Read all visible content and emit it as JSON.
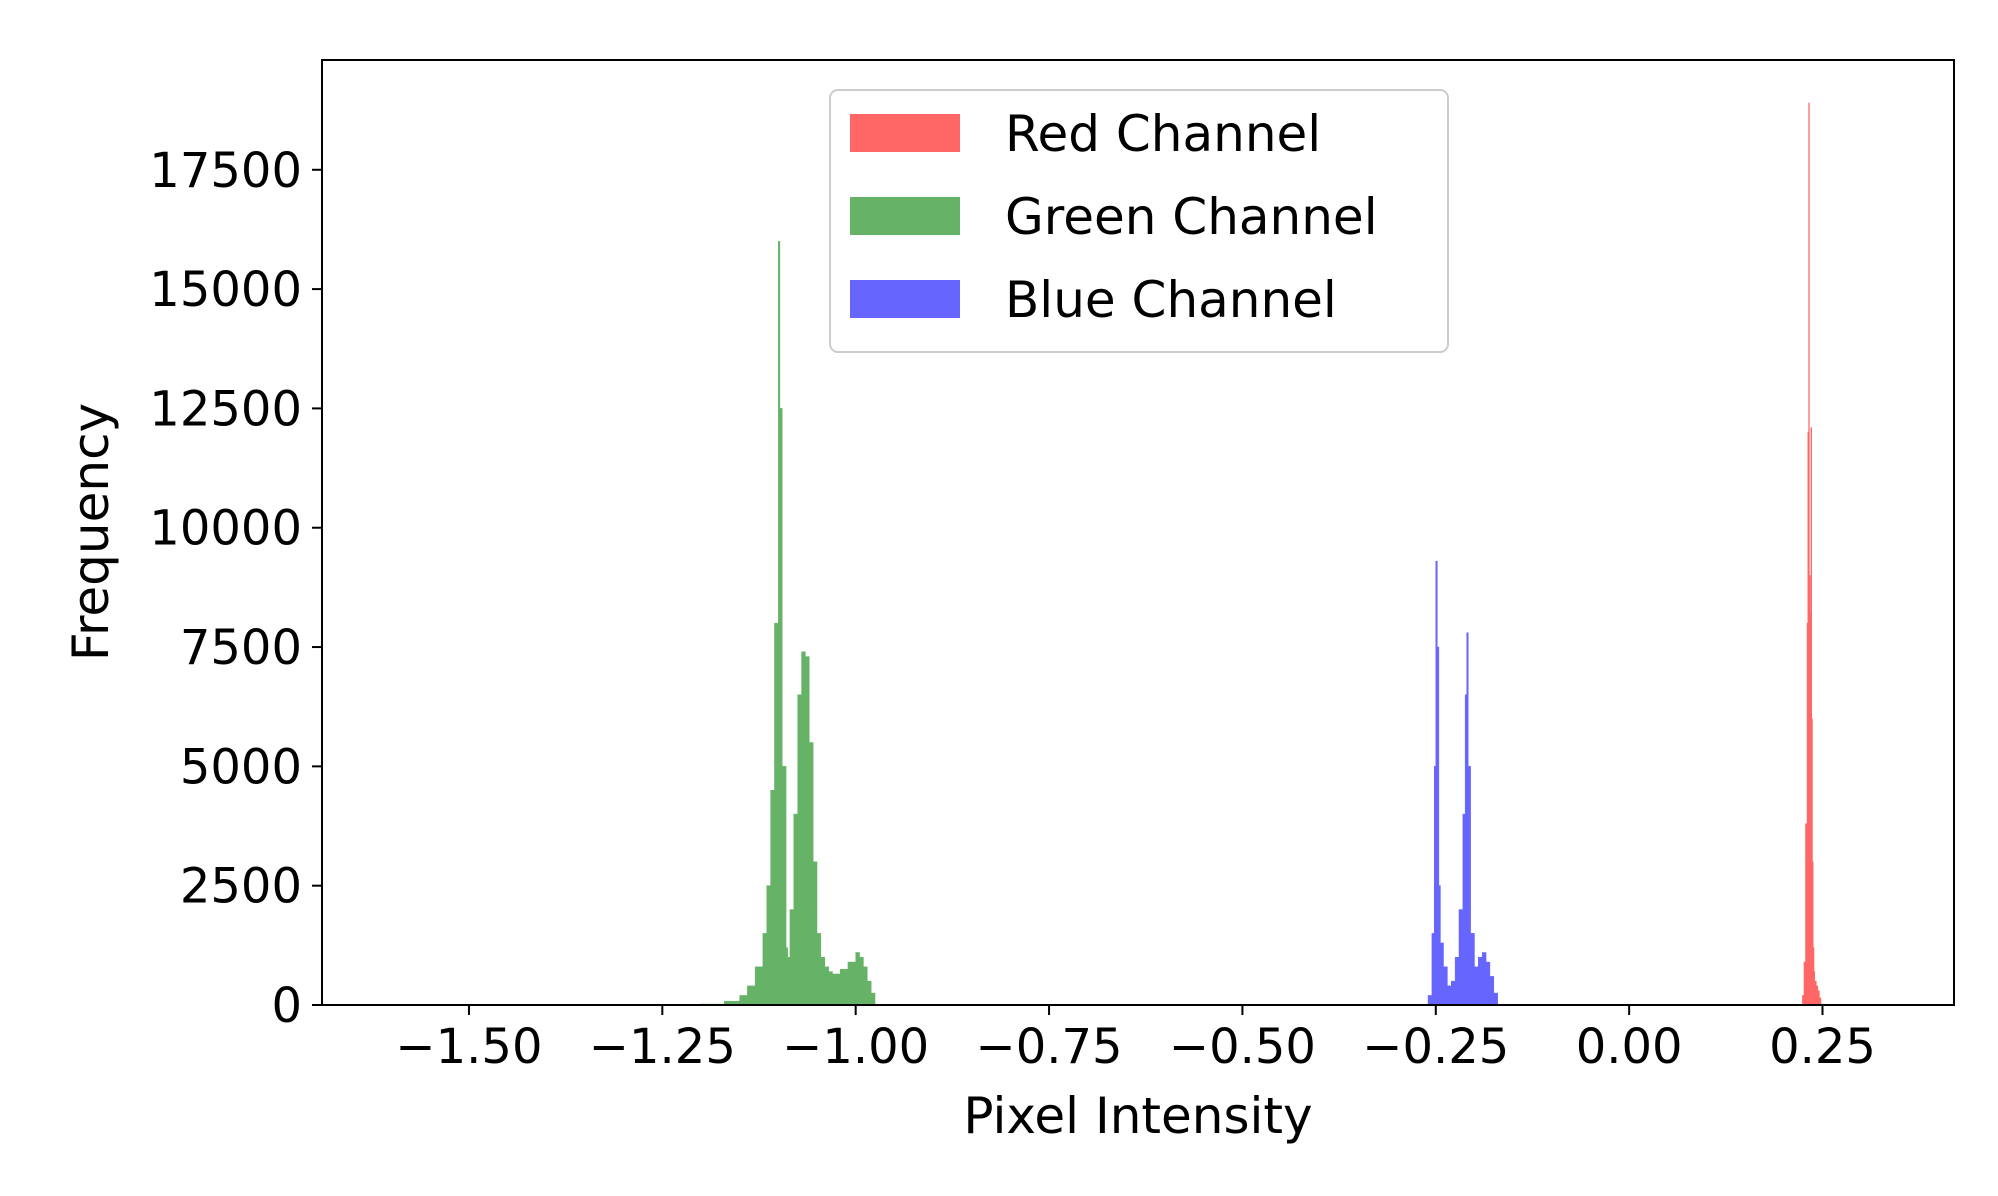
{
  "chart_data": {
    "type": "bar",
    "title": "",
    "xlabel": "Pixel Intensity",
    "ylabel": "Frequency",
    "xlim": [
      -1.69,
      0.42
    ],
    "ylim": [
      0,
      19800
    ],
    "x_ticks": [
      -1.5,
      -1.25,
      -1.0,
      -0.75,
      -0.5,
      -0.25,
      0.0,
      0.25
    ],
    "x_tick_labels": [
      "−1.50",
      "−1.25",
      "−1.00",
      "−0.75",
      "−0.50",
      "−0.25",
      "0.00",
      "0.25"
    ],
    "y_ticks": [
      0,
      2500,
      5000,
      7500,
      10000,
      12500,
      15000,
      17500
    ],
    "y_tick_labels": [
      "0",
      "2500",
      "5000",
      "7500",
      "10000",
      "12500",
      "15000",
      "17500"
    ],
    "grid": false,
    "legend_position": "top-center",
    "series": [
      {
        "name": "Red Channel",
        "color": "#ff6666",
        "x": [
          0.224,
          0.226,
          0.228,
          0.23,
          0.231,
          0.232,
          0.233,
          0.234,
          0.235,
          0.236,
          0.237,
          0.238,
          0.239,
          0.24,
          0.242,
          0.244,
          0.246,
          0.248
        ],
        "values": [
          200,
          900,
          3800,
          8000,
          12000,
          18900,
          9000,
          8200,
          12100,
          6000,
          3000,
          1200,
          700,
          500,
          400,
          300,
          150,
          0
        ]
      },
      {
        "name": "Green Channel",
        "color": "#66b266",
        "x": [
          -1.2,
          -1.17,
          -1.15,
          -1.14,
          -1.13,
          -1.12,
          -1.115,
          -1.11,
          -1.105,
          -1.1,
          -1.098,
          -1.095,
          -1.09,
          -1.088,
          -1.085,
          -1.08,
          -1.075,
          -1.07,
          -1.065,
          -1.06,
          -1.055,
          -1.05,
          -1.045,
          -1.04,
          -1.035,
          -1.03,
          -1.02,
          -1.01,
          -1.0,
          -0.995,
          -0.99,
          -0.985,
          -0.98,
          -0.975
        ],
        "values": [
          20,
          80,
          200,
          400,
          800,
          1500,
          2500,
          4500,
          8000,
          16000,
          12500,
          5000,
          1200,
          1000,
          2000,
          4000,
          6500,
          7400,
          7300,
          5500,
          3000,
          1500,
          1000,
          800,
          700,
          650,
          750,
          900,
          1100,
          1000,
          800,
          500,
          250,
          0
        ]
      },
      {
        "name": "Blue Channel",
        "color": "#6666ff",
        "x": [
          -0.26,
          -0.255,
          -0.252,
          -0.25,
          -0.248,
          -0.246,
          -0.244,
          -0.24,
          -0.235,
          -0.23,
          -0.225,
          -0.22,
          -0.215,
          -0.212,
          -0.21,
          -0.208,
          -0.205,
          -0.2,
          -0.195,
          -0.19,
          -0.185,
          -0.18,
          -0.175,
          -0.17
        ],
        "values": [
          200,
          1500,
          5000,
          9300,
          7500,
          2500,
          1300,
          800,
          400,
          500,
          1000,
          2000,
          4000,
          6500,
          7800,
          5000,
          1500,
          800,
          1000,
          1100,
          900,
          600,
          250,
          0
        ]
      }
    ]
  }
}
